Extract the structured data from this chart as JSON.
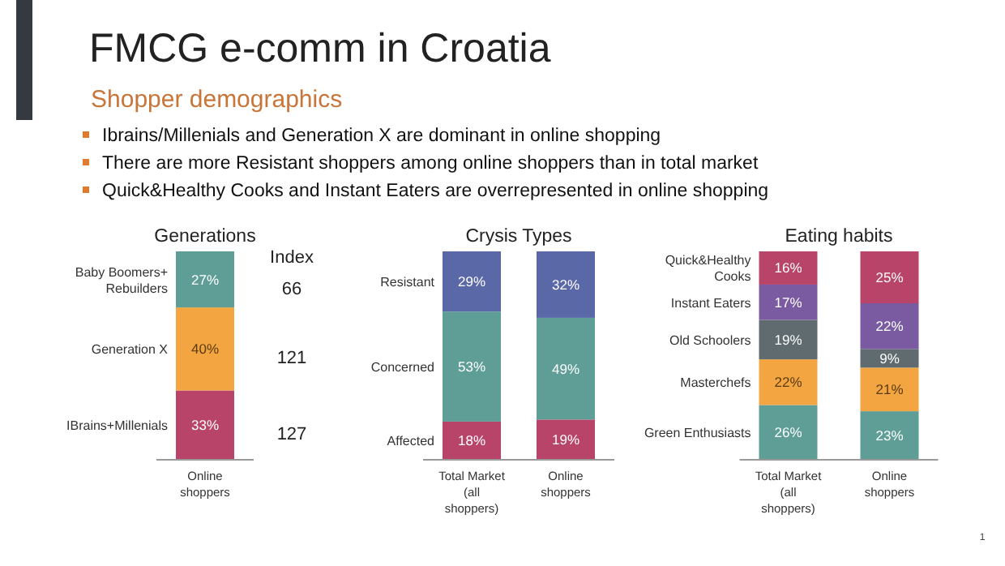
{
  "chart_data": [
    {
      "type": "other",
      "title": "FMCG e-comm in Croatia",
      "subtitle": "Shopper demographics",
      "annotations": [
        "Ibrains/Millenials and Generation X are dominant in online shopping",
        "There are more Resistant shoppers among online shoppers than in total market",
        "Quick&Healthy Cooks and Instant Eaters are overrepresented in online shopping",
        "1"
      ]
    },
    {
      "type": "bar",
      "title": "Generations",
      "stacked": true,
      "categories": [
        "Online shoppers"
      ],
      "series": [
        {
          "name": "IBrains+Millenials",
          "color": "#b8446a",
          "values": [
            33
          ],
          "value_labels": [
            "33%"
          ]
        },
        {
          "name": "Generation X",
          "color": "#f2a541",
          "values": [
            40
          ],
          "value_labels": [
            "40%"
          ]
        },
        {
          "name": "Baby Boomers+ Rebuilders",
          "color": "#5e9e96",
          "values": [
            27
          ],
          "value_labels": [
            "27%"
          ]
        }
      ],
      "annotations": [
        "Index",
        "127",
        "121",
        "66"
      ]
    },
    {
      "type": "bar",
      "title": "Crysis Types",
      "stacked": true,
      "categories": [
        "Total Market (all shoppers)",
        "Online shoppers"
      ],
      "series": [
        {
          "name": "Affected",
          "color": "#b8446a",
          "values": [
            18,
            19
          ],
          "value_labels": [
            "18%",
            "19%"
          ]
        },
        {
          "name": "Concerned",
          "color": "#5e9e96",
          "values": [
            53,
            49
          ],
          "value_labels": [
            "53%",
            "49%"
          ]
        },
        {
          "name": "Resistant",
          "color": "#5a68a8",
          "values": [
            29,
            32
          ],
          "value_labels": [
            "29%",
            "32%"
          ]
        }
      ]
    },
    {
      "type": "bar",
      "title": "Eating habits",
      "stacked": true,
      "categories": [
        "Total Market (all shoppers)",
        "Online shoppers"
      ],
      "series": [
        {
          "name": "Green Enthusiasts",
          "color": "#5e9e96",
          "values": [
            26,
            23
          ],
          "value_labels": [
            "26%",
            "23%"
          ]
        },
        {
          "name": "Masterchefs",
          "color": "#f2a541",
          "values": [
            22,
            21
          ],
          "value_labels": [
            "22%",
            "21%"
          ]
        },
        {
          "name": "Old Schoolers",
          "color": "#5f6b6e",
          "values": [
            19,
            9
          ],
          "value_labels": [
            "19%",
            "9%"
          ]
        },
        {
          "name": "Instant Eaters",
          "color": "#7a5ba1",
          "values": [
            17,
            22
          ],
          "value_labels": [
            "17%",
            "22%"
          ]
        },
        {
          "name": "Quick&Healthy Cooks",
          "color": "#b8446a",
          "values": [
            16,
            25
          ],
          "value_labels": [
            "16%",
            "25%"
          ]
        }
      ]
    }
  ]
}
